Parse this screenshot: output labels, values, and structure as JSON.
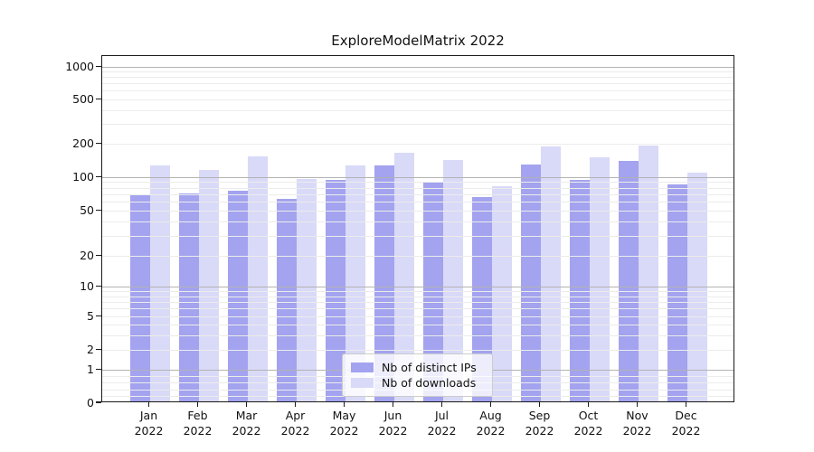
{
  "figure": {
    "title": "ExploreModelMatrix 2022"
  },
  "chart_data": {
    "type": "bar",
    "title": "ExploreModelMatrix 2022",
    "categories": [
      "Jan 2022",
      "Feb 2022",
      "Mar 2022",
      "Apr 2022",
      "May 2022",
      "Jun 2022",
      "Jul 2022",
      "Aug 2022",
      "Sep 2022",
      "Oct 2022",
      "Nov 2022",
      "Dec 2022"
    ],
    "series": [
      {
        "name": "Nb of distinct IPs",
        "color": "#a3a3ef",
        "values": [
          68,
          70,
          74,
          62,
          92,
          123,
          88,
          64,
          127,
          91,
          135,
          84
        ]
      },
      {
        "name": "Nb of downloads",
        "color": "#d9d9f8",
        "values": [
          124,
          112,
          149,
          93,
          124,
          162,
          138,
          80,
          186,
          148,
          189,
          107
        ]
      }
    ],
    "xlabel": "",
    "ylabel": "",
    "yscale": "symlog",
    "yticks": [
      0,
      1,
      2,
      5,
      10,
      20,
      50,
      100,
      200,
      500,
      1000
    ],
    "ylim": [
      0,
      1250
    ],
    "grid": true,
    "legend_position": "lower center",
    "colors": {
      "major_grid": "#b3b3b3",
      "minor_grid": "#ececec",
      "axis": "#1a1a1a",
      "text": "#111111"
    }
  }
}
